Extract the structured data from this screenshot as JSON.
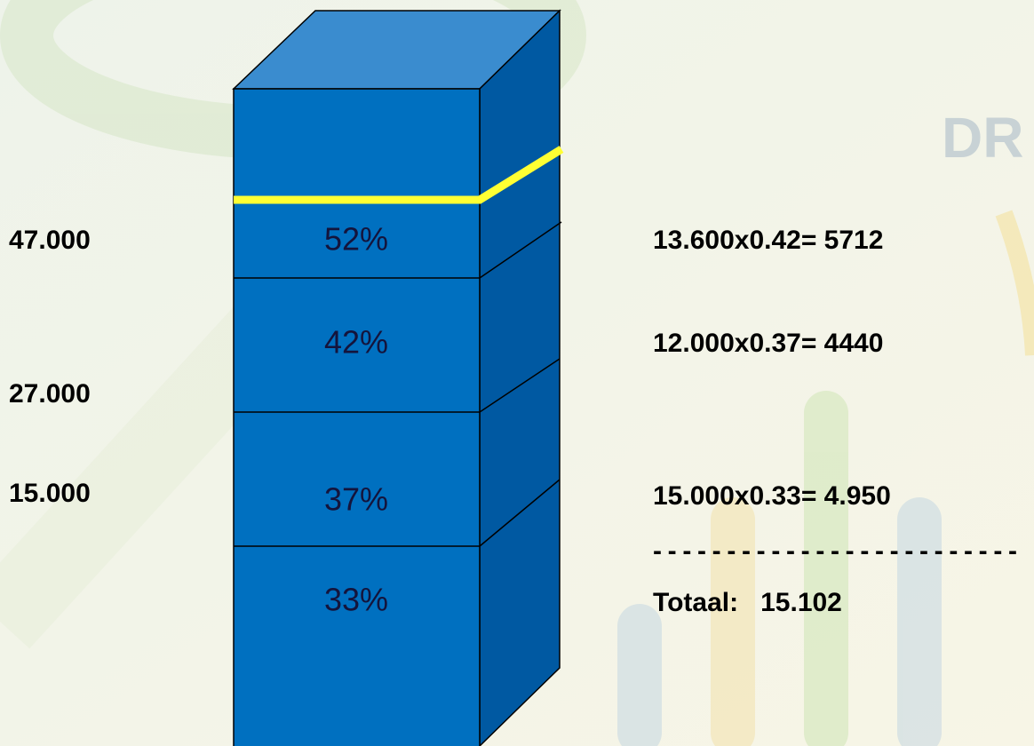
{
  "watermark": "DR",
  "left_labels": [
    "47.000",
    "27.000",
    "15.000"
  ],
  "brackets": [
    "52%",
    "42%",
    "37%",
    "33%"
  ],
  "calculations": [
    "13.600x0.42= 5712",
    "12.000x0.37= 4440",
    "15.000x0.33= 4.950"
  ],
  "separator": "-------------------------",
  "total": "Totaal:   15.102"
}
